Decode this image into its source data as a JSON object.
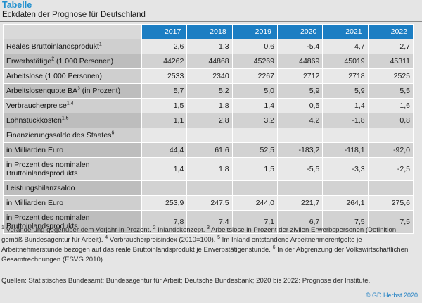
{
  "header": {
    "title": "Tabelle",
    "subtitle": "Eckdaten der Prognose für Deutschland"
  },
  "table": {
    "years": [
      "2017",
      "2018",
      "2019",
      "2020",
      "2021",
      "2022"
    ],
    "rows": [
      {
        "label": "Reales Bruttoinlandsprodukt",
        "sup": "1",
        "values": [
          "2,6",
          "1,3",
          "0,6",
          "-5,4",
          "4,7",
          "2,7"
        ]
      },
      {
        "label": "Erwerbstätige",
        "sup": "2",
        "after": " (1 000 Personen)",
        "values": [
          "44262",
          "44868",
          "45269",
          "44869",
          "45019",
          "45311"
        ]
      },
      {
        "label": "Arbeitslose (1 000 Personen)",
        "values": [
          "2533",
          "2340",
          "2267",
          "2712",
          "2718",
          "2525"
        ]
      },
      {
        "label": "Arbeitslosenquote BA",
        "sup": "3",
        "after": " (in Prozent)",
        "values": [
          "5,7",
          "5,2",
          "5,0",
          "5,9",
          "5,9",
          "5,5"
        ]
      },
      {
        "label": "Verbraucherpreise",
        "sup": "1,4",
        "values": [
          "1,5",
          "1,8",
          "1,4",
          "0,5",
          "1,4",
          "1,6"
        ]
      },
      {
        "label": "Lohnstückkosten",
        "sup": "1,5",
        "values": [
          "1,1",
          "2,8",
          "3,2",
          "4,2",
          "-1,8",
          "0,8"
        ]
      },
      {
        "label": "Finanzierungssaldo des Staates",
        "sup": "6",
        "values": [
          "",
          "",
          "",
          "",
          "",
          ""
        ]
      },
      {
        "label": "in Milliarden Euro",
        "values": [
          "44,4",
          "61,6",
          "52,5",
          "-183,2",
          "-118,1",
          "-92,0"
        ]
      },
      {
        "label": "in Prozent des nominalen Bruttoinlandsprodukts",
        "values": [
          "1,4",
          "1,8",
          "1,5",
          "-5,5",
          "-3,3",
          "-2,5"
        ]
      },
      {
        "label": "Leistungsbilanzsaldo",
        "values": [
          "",
          "",
          "",
          "",
          "",
          ""
        ]
      },
      {
        "label": "in Milliarden Euro",
        "values": [
          "253,9",
          "247,5",
          "244,0",
          "221,7",
          "264,1",
          "275,6"
        ]
      },
      {
        "label": "in Prozent des nominalen Bruttoinlandsprodukts",
        "values": [
          "7,8",
          "7,4",
          "7,1",
          "6,7",
          "7,5",
          "7,5"
        ]
      }
    ]
  },
  "notes": [
    {
      "sup": "1",
      "text": " Veränderung gegenüber dem Vorjahr in Prozent. "
    },
    {
      "sup": "2",
      "text": " Inlandskonzept. "
    },
    {
      "sup": "3",
      "text": " Arbeitslose in Prozent der zivilen Erwerbspersonen (Definition gemäß Bundesagentur für Arbeit). "
    },
    {
      "sup": "4",
      "text": " Verbraucherpreisindex (2010=100). "
    },
    {
      "sup": "5",
      "text": " Im Inland entstandene Arbeitnehmerentgelte je Arbeitnehmerstunde bezogen auf das reale Bruttoinlandsprodukt je Erwerbstätigenstunde. "
    },
    {
      "sup": "6",
      "text": " In der Abgrenzung der Volkswirtschaftlichen Gesamtrechnungen (ESVG 2010)."
    }
  ],
  "sources": "Quellen: Statistisches Bundesamt; Bundesagentur für Arbeit; Deutsche Bundesbank; 2020 bis 2022: Prognose der Institute.",
  "copyright": "© GD Herbst 2020",
  "colors": {
    "accent": "#1c7ec3",
    "title": "#1f8fce"
  }
}
